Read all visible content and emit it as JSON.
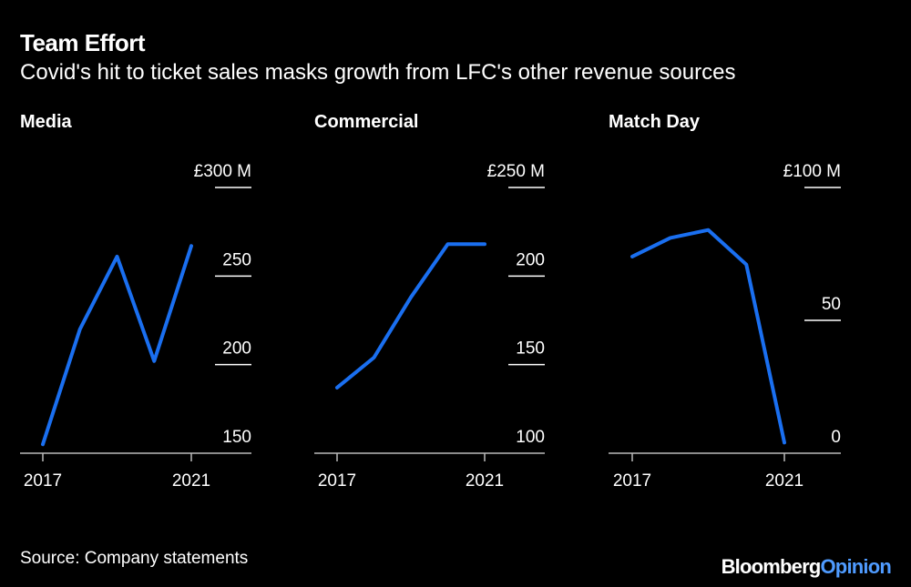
{
  "title": "Team Effort",
  "subtitle": "Covid's hit to ticket sales masks growth from LFC's other revenue sources",
  "source": "Source: Company statements",
  "logo": {
    "brand": "Bloomberg",
    "suffix": "Opinion"
  },
  "colors": {
    "line": "#1a6ff0",
    "background": "#000000",
    "text": "#ffffff",
    "logo_accent": "#4f9bff"
  },
  "chart_data": [
    {
      "type": "line",
      "title": "Media",
      "x": [
        2017,
        2018,
        2019,
        2020,
        2021
      ],
      "values": [
        155,
        220,
        261,
        202,
        267
      ],
      "ylim": [
        150,
        300
      ],
      "yticks": [
        150,
        200,
        250,
        300
      ],
      "ytick_labels": [
        "150",
        "200",
        "250",
        "£300 M"
      ],
      "xtick_labels": [
        "2017",
        "2021"
      ],
      "grid": false
    },
    {
      "type": "line",
      "title": "Commercial",
      "x": [
        2017,
        2018,
        2019,
        2020,
        2021
      ],
      "values": [
        137,
        154,
        188,
        218,
        218
      ],
      "ylim": [
        100,
        250
      ],
      "yticks": [
        100,
        150,
        200,
        250
      ],
      "ytick_labels": [
        "100",
        "150",
        "200",
        "£250 M"
      ],
      "xtick_labels": [
        "2017",
        "2021"
      ],
      "grid": false
    },
    {
      "type": "line",
      "title": "Match Day",
      "x": [
        2017,
        2018,
        2019,
        2020,
        2021
      ],
      "values": [
        74,
        81,
        84,
        71,
        4
      ],
      "ylim": [
        0,
        100
      ],
      "yticks": [
        0,
        50,
        100
      ],
      "ytick_labels": [
        "0",
        "50",
        "£100 M"
      ],
      "xtick_labels": [
        "2017",
        "2021"
      ],
      "grid": false
    }
  ]
}
